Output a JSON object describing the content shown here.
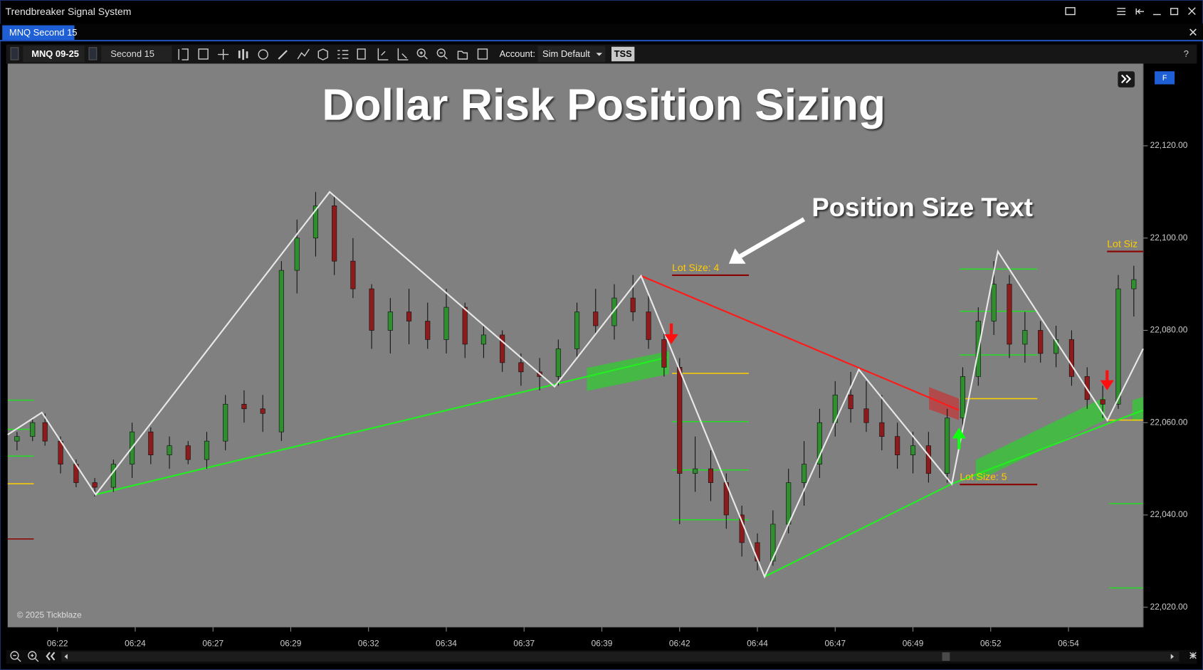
{
  "window": {
    "title": "Trendbreaker Signal System"
  },
  "tab": {
    "label": "MNQ Second 15"
  },
  "toolbar": {
    "symbol": "MNQ 09-25",
    "timeframe": "Second 15",
    "account_label": "Account:",
    "account": "Sim Default",
    "indicator": "TSS",
    "help": "?"
  },
  "chart": {
    "title": "Dollar Risk Position Sizing",
    "annotation": "Position Size Text",
    "copyright": "© 2025 Tickblaze",
    "button": "F",
    "lot_labels": [
      "Lot Size: 4",
      "Lot Size: 5",
      "Lot Siz"
    ],
    "xlim": [
      20.4,
      56.9
    ],
    "ylim": [
      22015.7,
      22137.8
    ],
    "xticks": [
      {
        "value": 22,
        "label": "06:22"
      },
      {
        "value": 24.5,
        "label": "06:24"
      },
      {
        "value": 27,
        "label": "06:27"
      },
      {
        "value": 29.5,
        "label": "06:29"
      },
      {
        "value": 32,
        "label": "06:32"
      },
      {
        "value": 34.5,
        "label": "06:34"
      },
      {
        "value": 37,
        "label": "06:37"
      },
      {
        "value": 39.5,
        "label": "06:39"
      },
      {
        "value": 42,
        "label": "06:42"
      },
      {
        "value": 44.5,
        "label": "06:44"
      },
      {
        "value": 47,
        "label": "06:47"
      },
      {
        "value": 49.5,
        "label": "06:49"
      },
      {
        "value": 52,
        "label": "06:52"
      },
      {
        "value": 54.5,
        "label": "06:54"
      }
    ],
    "yticks": [
      {
        "value": 22020,
        "label": "22,020.00"
      },
      {
        "value": 22040,
        "label": "22,040.00"
      },
      {
        "value": 22060,
        "label": "22,060.00"
      },
      {
        "value": 22080,
        "label": "22,080.00"
      },
      {
        "value": 22100,
        "label": "22,100.00"
      },
      {
        "value": 22120,
        "label": "22,120.00"
      }
    ],
    "candles": [
      [
        20.7,
        22056,
        22058,
        22054,
        22057
      ],
      [
        21.2,
        22057,
        22061,
        22056,
        22060
      ],
      [
        21.6,
        22060,
        22062,
        22055,
        22056
      ],
      [
        22.1,
        22056,
        22057,
        22049,
        22051
      ],
      [
        22.6,
        22051,
        22052,
        22046,
        22047
      ],
      [
        23.2,
        22047,
        22048,
        22044,
        22046
      ],
      [
        23.8,
        22046,
        22052,
        22045,
        22051
      ],
      [
        24.4,
        22051,
        22060,
        22048,
        22058
      ],
      [
        25.0,
        22058,
        22059,
        22051,
        22053
      ],
      [
        25.6,
        22053,
        22057,
        22050,
        22055
      ],
      [
        26.2,
        22055,
        22056,
        22051,
        22052
      ],
      [
        26.8,
        22052,
        22058,
        22050,
        22056
      ],
      [
        27.4,
        22056,
        22066,
        22054,
        22064
      ],
      [
        28.0,
        22064,
        22067,
        22060,
        22063
      ],
      [
        28.6,
        22063,
        22066,
        22058,
        22062
      ],
      [
        29.2,
        22058,
        22095,
        22056,
        22093
      ],
      [
        29.7,
        22093,
        22104,
        22088,
        22100
      ],
      [
        30.3,
        22100,
        22110,
        22096,
        22107
      ],
      [
        30.9,
        22107,
        22109,
        22092,
        22095
      ],
      [
        31.5,
        22095,
        22100,
        22087,
        22089
      ],
      [
        32.1,
        22089,
        22090,
        22076,
        22080
      ],
      [
        32.7,
        22080,
        22087,
        22075,
        22084
      ],
      [
        33.3,
        22084,
        22089,
        22077,
        22082
      ],
      [
        33.9,
        22082,
        22086,
        22076,
        22078
      ],
      [
        34.5,
        22078,
        22089,
        22075,
        22085
      ],
      [
        35.1,
        22085,
        22086,
        22074,
        22077
      ],
      [
        35.7,
        22077,
        22081,
        22074,
        22079
      ],
      [
        36.3,
        22079,
        22080,
        22071,
        22073
      ],
      [
        36.9,
        22073,
        22075,
        22068,
        22071
      ],
      [
        37.5,
        22071,
        22074,
        22067,
        22070
      ],
      [
        38.1,
        22070,
        22078,
        22068,
        22076
      ],
      [
        38.7,
        22076,
        22086,
        22074,
        22084
      ],
      [
        39.3,
        22084,
        22089,
        22079,
        22081
      ],
      [
        39.9,
        22081,
        22090,
        22078,
        22087
      ],
      [
        40.5,
        22087,
        22092,
        22082,
        22084
      ],
      [
        41.0,
        22084,
        22088,
        22076,
        22078
      ],
      [
        41.5,
        22078,
        22080,
        22070,
        22072
      ],
      [
        42.0,
        22072,
        22074,
        22038,
        22049
      ],
      [
        42.5,
        22049,
        22057,
        22045,
        22050
      ],
      [
        43.0,
        22050,
        22054,
        22043,
        22047
      ],
      [
        43.5,
        22047,
        22049,
        22037,
        22040
      ],
      [
        44.0,
        22040,
        22042,
        22031,
        22034
      ],
      [
        44.5,
        22034,
        22036,
        22028,
        22030
      ],
      [
        45.0,
        22030,
        22041,
        22029,
        22038
      ],
      [
        45.5,
        22038,
        22050,
        22036,
        22047
      ],
      [
        46.0,
        22047,
        22056,
        22042,
        22051
      ],
      [
        46.5,
        22051,
        22063,
        22048,
        22060
      ],
      [
        47.0,
        22060,
        22069,
        22057,
        22066
      ],
      [
        47.5,
        22066,
        22071,
        22060,
        22063
      ],
      [
        48.0,
        22063,
        22069,
        22058,
        22060
      ],
      [
        48.5,
        22060,
        22066,
        22054,
        22057
      ],
      [
        49.0,
        22057,
        22060,
        22050,
        22053
      ],
      [
        49.5,
        22053,
        22058,
        22049,
        22055
      ],
      [
        50.0,
        22055,
        22058,
        22047,
        22049
      ],
      [
        50.6,
        22049,
        22063,
        22047,
        22061
      ],
      [
        51.1,
        22061,
        22072,
        22059,
        22070
      ],
      [
        51.6,
        22070,
        22085,
        22068,
        22082
      ],
      [
        52.1,
        22082,
        22095,
        22079,
        22090
      ],
      [
        52.6,
        22090,
        22092,
        22074,
        22077
      ],
      [
        53.1,
        22077,
        22084,
        22073,
        22080
      ],
      [
        53.6,
        22080,
        22082,
        22073,
        22075
      ],
      [
        54.1,
        22075,
        22081,
        22072,
        22078
      ],
      [
        54.6,
        22078,
        22080,
        22068,
        22070
      ],
      [
        55.1,
        22070,
        22072,
        22063,
        22065
      ],
      [
        55.6,
        22065,
        22068,
        22061,
        22064
      ],
      [
        56.1,
        22064,
        22092,
        22063,
        22089
      ],
      [
        56.6,
        22089,
        22094,
        22083,
        22091
      ]
    ],
    "zigzag": {
      "x": [
        20.4,
        21.5,
        23.23,
        30.75,
        37.98,
        40.76,
        44.73,
        47.76,
        50.75,
        52.23,
        55.75,
        56.9
      ],
      "y": [
        22057.4,
        22062.2,
        22044.4,
        22110.0,
        22067.8,
        22091.8,
        22026.6,
        22071.5,
        22046.7,
        22097.1,
        22060.5,
        22076.0
      ]
    }
  }
}
